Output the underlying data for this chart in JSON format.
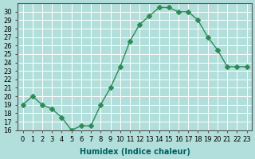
{
  "x": [
    0,
    1,
    2,
    3,
    4,
    5,
    6,
    7,
    8,
    9,
    10,
    11,
    12,
    13,
    14,
    15,
    16,
    17,
    18,
    19,
    20,
    21,
    22,
    23
  ],
  "y": [
    19,
    20,
    19,
    18.5,
    17.5,
    16,
    16.5,
    16.5,
    19,
    21,
    23.5,
    26.5,
    28.5,
    29.5,
    30.5,
    30.5,
    30,
    30,
    29,
    27,
    25.5,
    23.5,
    23.5,
    23.5
  ],
  "xlabel": "Humidex (Indice chaleur)",
  "ylim": [
    16,
    31
  ],
  "xlim_min": -0.5,
  "xlim_max": 23.5,
  "yticks": [
    16,
    17,
    18,
    19,
    20,
    21,
    22,
    23,
    24,
    25,
    26,
    27,
    28,
    29,
    30
  ],
  "xticks": [
    0,
    1,
    2,
    3,
    4,
    5,
    6,
    7,
    8,
    9,
    10,
    11,
    12,
    13,
    14,
    15,
    16,
    17,
    18,
    19,
    20,
    21,
    22,
    23
  ],
  "xtick_labels": [
    "0",
    "1",
    "2",
    "3",
    "4",
    "5",
    "6",
    "7",
    "8",
    "9",
    "10",
    "11",
    "12",
    "13",
    "14",
    "15",
    "16",
    "17",
    "18",
    "19",
    "20",
    "21",
    "22",
    "23"
  ],
  "line_color": "#2e8b57",
  "marker": "D",
  "marker_size": 3,
  "bg_color": "#b2dfdb",
  "grid_color": "#ffffff",
  "label_fontsize": 7,
  "tick_fontsize": 6
}
